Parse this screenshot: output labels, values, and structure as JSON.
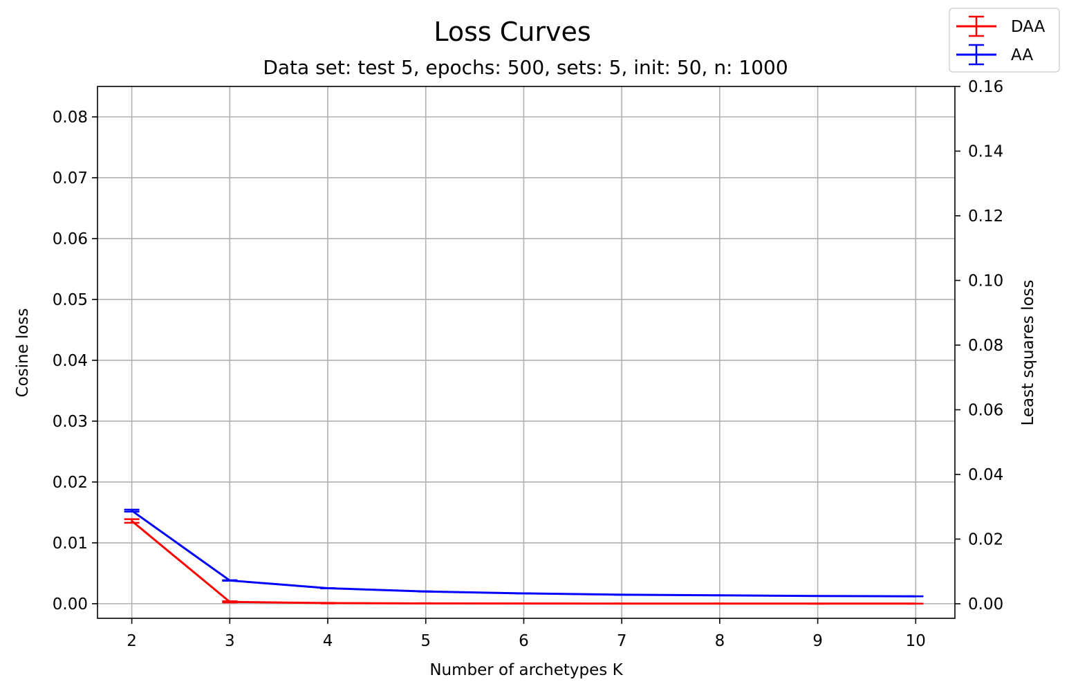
{
  "chart_data": {
    "type": "line",
    "title": "Loss Curves",
    "subtitle": "Data set: test 5, epochs: 500, sets: 5, init: 50, n: 1000",
    "xlabel": "Number of archetypes K",
    "ylabel": "Cosine loss",
    "y2label": "Least squares loss",
    "x": [
      2,
      3,
      4,
      5,
      6,
      7,
      8,
      9,
      10
    ],
    "xlim": [
      1.65,
      10.4
    ],
    "ylim": [
      -0.0024,
      0.085
    ],
    "y2lim": [
      -0.0045,
      0.16
    ],
    "xticks": [
      "2",
      "3",
      "4",
      "5",
      "6",
      "7",
      "8",
      "9",
      "10"
    ],
    "yticks": [
      "0.00",
      "0.01",
      "0.02",
      "0.03",
      "0.04",
      "0.05",
      "0.06",
      "0.07",
      "0.08"
    ],
    "y2ticks": [
      "0.00",
      "0.02",
      "0.04",
      "0.06",
      "0.08",
      "0.10",
      "0.12",
      "0.14",
      "0.16"
    ],
    "grid": true,
    "legend_position": "top-right",
    "series": [
      {
        "name": "DAA",
        "color": "#ff0000",
        "axis": "left",
        "values": [
          0.0136,
          0.0003,
          0.0001,
          5e-05,
          3e-05,
          2e-05,
          2e-05,
          1e-05,
          1e-05
        ],
        "errors": [
          0.0003,
          0.0001,
          5e-05,
          3e-05,
          2e-05,
          1e-05,
          1e-05,
          1e-05,
          1e-05
        ]
      },
      {
        "name": "AA",
        "color": "#0000ff",
        "axis": "right",
        "values": [
          0.0288,
          0.0072,
          0.0048,
          0.0038,
          0.0032,
          0.0028,
          0.0026,
          0.0024,
          0.0023
        ],
        "errors": [
          0.0003,
          0.0001,
          5e-05,
          3e-05,
          2e-05,
          1e-05,
          1e-05,
          1e-05,
          1e-05
        ]
      }
    ]
  }
}
